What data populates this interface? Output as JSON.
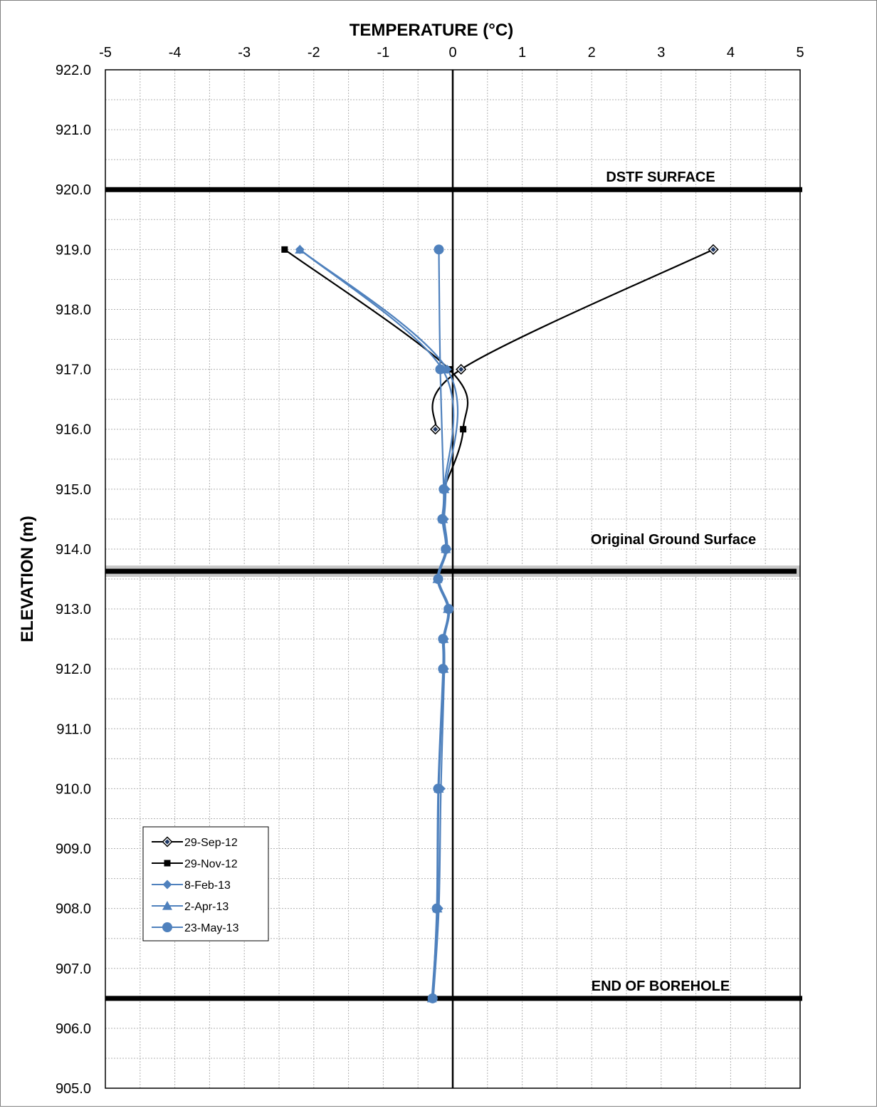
{
  "chart_data": {
    "type": "line",
    "xlabel": "TEMPERATURE (°C)",
    "ylabel": "ELEVATION (m)",
    "xlim": [
      -5,
      5
    ],
    "ylim": [
      905,
      922
    ],
    "x_ticks": [
      "-5",
      "-4",
      "-3",
      "-2",
      "-1",
      "0",
      "1",
      "2",
      "3",
      "4",
      "5"
    ],
    "y_ticks": [
      "922.0",
      "921.0",
      "920.0",
      "919.0",
      "918.0",
      "917.0",
      "916.0",
      "915.0",
      "914.0",
      "913.0",
      "912.0",
      "911.0",
      "910.0",
      "909.0",
      "908.0",
      "907.0",
      "906.0",
      "905.0"
    ],
    "grid": true,
    "legend_position": "bottom-left",
    "reference_lines": [
      {
        "elevation": 920.0,
        "label": "DSTF SURFACE"
      },
      {
        "elevation": 913.63,
        "label": "Original Ground Surface"
      },
      {
        "elevation": 906.5,
        "label": "END OF BOREHOLE"
      }
    ],
    "series": [
      {
        "name": "29-Sep-12",
        "color": "#000000",
        "marker": "diamond",
        "points": [
          [
            3.75,
            919.0
          ],
          [
            0.12,
            917.0
          ],
          [
            -0.25,
            916.0
          ]
        ]
      },
      {
        "name": "29-Nov-12",
        "color": "#000000",
        "marker": "square",
        "points": [
          [
            -2.42,
            919.0
          ],
          [
            -0.05,
            917.0
          ],
          [
            0.15,
            916.0
          ],
          [
            -0.13,
            915.0
          ]
        ]
      },
      {
        "name": "8-Feb-13",
        "color": "#4F81BD",
        "marker": "diamond",
        "points": [
          [
            -2.2,
            919.0
          ],
          [
            -0.08,
            917.0
          ],
          [
            -0.1,
            915.0
          ],
          [
            -0.12,
            914.5
          ],
          [
            -0.08,
            914.0
          ],
          [
            -0.2,
            913.5
          ],
          [
            -0.05,
            913.0
          ],
          [
            -0.12,
            912.5
          ],
          [
            -0.12,
            912.0
          ],
          [
            -0.17,
            910.0
          ],
          [
            -0.2,
            908.0
          ],
          [
            -0.28,
            906.5
          ]
        ]
      },
      {
        "name": "2-Apr-13",
        "color": "#4F81BD",
        "marker": "triangle",
        "points": [
          [
            -2.2,
            919.0
          ],
          [
            -0.15,
            917.0
          ],
          [
            -0.12,
            915.0
          ],
          [
            -0.14,
            914.5
          ],
          [
            -0.1,
            914.0
          ],
          [
            -0.22,
            913.5
          ],
          [
            -0.07,
            913.0
          ],
          [
            -0.13,
            912.5
          ],
          [
            -0.13,
            912.0
          ],
          [
            -0.2,
            910.0
          ],
          [
            -0.22,
            908.0
          ],
          [
            -0.3,
            906.5
          ]
        ]
      },
      {
        "name": "23-May-13",
        "color": "#4F81BD",
        "marker": "circle",
        "points": [
          [
            -0.2,
            919.0
          ],
          [
            -0.18,
            917.0
          ],
          [
            -0.13,
            915.0
          ],
          [
            -0.15,
            914.5
          ],
          [
            -0.1,
            914.0
          ],
          [
            -0.21,
            913.5
          ],
          [
            -0.06,
            913.0
          ],
          [
            -0.14,
            912.5
          ],
          [
            -0.14,
            912.0
          ],
          [
            -0.21,
            910.0
          ],
          [
            -0.23,
            908.0
          ],
          [
            -0.29,
            906.5
          ]
        ]
      }
    ]
  }
}
